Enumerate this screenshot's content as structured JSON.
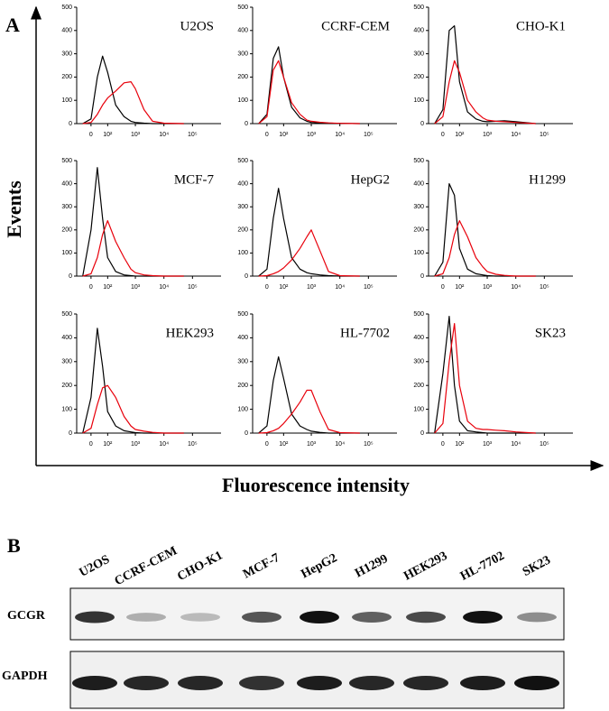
{
  "figure": {
    "panel_a": "A",
    "y_label": "Events",
    "x_label": "Fluorescence intensity",
    "panel_b": "B"
  },
  "blot": {
    "lanes": [
      "U2OS",
      "CCRF-CEM",
      "CHO-K1",
      "MCF-7",
      "HepG2",
      "H1299",
      "HEK293",
      "HL-7702",
      "SK23"
    ],
    "rows": [
      "GCGR",
      "GAPDH"
    ]
  },
  "chart_data": [
    {
      "type": "line",
      "title": "U2OS",
      "x": [
        -40,
        0,
        30,
        60,
        100,
        200,
        400,
        700,
        1000,
        2000,
        4000,
        10000,
        50000
      ],
      "xscale": "biexponential",
      "xlim": [
        -80,
        1000000
      ],
      "ylim": [
        0,
        500
      ],
      "yticks": [
        0,
        100,
        200,
        300,
        400,
        500
      ],
      "xticks": [
        0,
        {
          "value": 100,
          "label": "10²"
        },
        {
          "value": 1000,
          "label": "10³"
        },
        {
          "value": 10000,
          "label": "10⁴"
        },
        {
          "value": 100000,
          "label": "10⁵"
        }
      ],
      "series": [
        {
          "color": "#000000",
          "values": [
            0,
            20,
            200,
            290,
            220,
            80,
            30,
            10,
            5,
            2,
            0,
            0,
            0
          ]
        },
        {
          "color": "#e8000b",
          "values": [
            0,
            5,
            40,
            80,
            110,
            140,
            175,
            180,
            150,
            60,
            10,
            2,
            0
          ]
        }
      ]
    },
    {
      "type": "line",
      "title": "CCRF-CEM",
      "x": [
        -40,
        0,
        30,
        60,
        100,
        200,
        400,
        700,
        1000,
        2000,
        4000,
        10000,
        50000
      ],
      "xscale": "biexponential",
      "xlim": [
        -80,
        1000000
      ],
      "ylim": [
        0,
        500
      ],
      "yticks": [
        0,
        100,
        200,
        300,
        400,
        500
      ],
      "xticks": [
        0,
        {
          "value": 100,
          "label": "10²"
        },
        {
          "value": 1000,
          "label": "10³"
        },
        {
          "value": 10000,
          "label": "10⁴"
        },
        {
          "value": 100000,
          "label": "10⁵"
        }
      ],
      "series": [
        {
          "color": "#000000",
          "values": [
            0,
            40,
            280,
            330,
            200,
            70,
            25,
            10,
            5,
            3,
            2,
            1,
            0
          ]
        },
        {
          "color": "#e8000b",
          "values": [
            0,
            30,
            230,
            270,
            200,
            90,
            40,
            15,
            10,
            6,
            3,
            1,
            0
          ]
        }
      ]
    },
    {
      "type": "line",
      "title": "CHO-K1",
      "x": [
        -40,
        0,
        30,
        60,
        100,
        200,
        400,
        700,
        1000,
        2000,
        4000,
        10000,
        50000
      ],
      "xscale": "biexponential",
      "xlim": [
        -80,
        1000000
      ],
      "ylim": [
        0,
        500
      ],
      "yticks": [
        0,
        100,
        200,
        300,
        400,
        500
      ],
      "xticks": [
        0,
        {
          "value": 100,
          "label": "10²"
        },
        {
          "value": 1000,
          "label": "10³"
        },
        {
          "value": 10000,
          "label": "10⁴"
        },
        {
          "value": 100000,
          "label": "10⁵"
        }
      ],
      "series": [
        {
          "color": "#000000",
          "values": [
            0,
            60,
            400,
            420,
            180,
            50,
            20,
            10,
            8,
            10,
            12,
            8,
            0
          ]
        },
        {
          "color": "#e8000b",
          "values": [
            0,
            30,
            180,
            270,
            220,
            100,
            50,
            25,
            15,
            10,
            8,
            5,
            0
          ]
        }
      ]
    },
    {
      "type": "line",
      "title": "MCF-7",
      "x": [
        -40,
        0,
        30,
        60,
        100,
        200,
        400,
        700,
        1000,
        2000,
        4000,
        10000,
        50000
      ],
      "xscale": "biexponential",
      "xlim": [
        -80,
        1000000
      ],
      "ylim": [
        0,
        500
      ],
      "yticks": [
        0,
        100,
        200,
        300,
        400,
        500
      ],
      "xticks": [
        0,
        {
          "value": 100,
          "label": "10²"
        },
        {
          "value": 1000,
          "label": "10³"
        },
        {
          "value": 10000,
          "label": "10⁴"
        },
        {
          "value": 100000,
          "label": "10⁵"
        }
      ],
      "series": [
        {
          "color": "#000000",
          "values": [
            0,
            200,
            470,
            250,
            80,
            20,
            5,
            2,
            0,
            0,
            0,
            0,
            0
          ]
        },
        {
          "color": "#e8000b",
          "values": [
            0,
            10,
            80,
            180,
            240,
            150,
            80,
            30,
            15,
            5,
            2,
            0,
            0
          ]
        }
      ]
    },
    {
      "type": "line",
      "title": "HepG2",
      "x": [
        -40,
        0,
        30,
        60,
        100,
        200,
        400,
        700,
        1000,
        2000,
        4000,
        10000,
        50000
      ],
      "xscale": "biexponential",
      "xlim": [
        -80,
        1000000
      ],
      "ylim": [
        0,
        500
      ],
      "yticks": [
        0,
        100,
        200,
        300,
        400,
        500
      ],
      "xticks": [
        0,
        {
          "value": 100,
          "label": "10²"
        },
        {
          "value": 1000,
          "label": "10³"
        },
        {
          "value": 10000,
          "label": "10⁴"
        },
        {
          "value": 100000,
          "label": "10⁵"
        }
      ],
      "series": [
        {
          "color": "#000000",
          "values": [
            0,
            30,
            250,
            380,
            250,
            80,
            30,
            15,
            10,
            5,
            2,
            0,
            0
          ]
        },
        {
          "color": "#e8000b",
          "values": [
            0,
            2,
            10,
            20,
            35,
            70,
            120,
            170,
            200,
            110,
            20,
            2,
            0
          ]
        }
      ]
    },
    {
      "type": "line",
      "title": "H1299",
      "x": [
        -40,
        0,
        30,
        60,
        100,
        200,
        400,
        700,
        1000,
        2000,
        4000,
        10000,
        50000
      ],
      "xscale": "biexponential",
      "xlim": [
        -80,
        1000000
      ],
      "ylim": [
        0,
        500
      ],
      "yticks": [
        0,
        100,
        200,
        300,
        400,
        500
      ],
      "xticks": [
        0,
        {
          "value": 100,
          "label": "10²"
        },
        {
          "value": 1000,
          "label": "10³"
        },
        {
          "value": 10000,
          "label": "10⁴"
        },
        {
          "value": 100000,
          "label": "10⁵"
        }
      ],
      "series": [
        {
          "color": "#000000",
          "values": [
            0,
            60,
            400,
            350,
            120,
            30,
            10,
            5,
            2,
            0,
            0,
            0,
            0
          ]
        },
        {
          "color": "#e8000b",
          "values": [
            0,
            10,
            80,
            180,
            240,
            170,
            80,
            40,
            20,
            8,
            3,
            0,
            0
          ]
        }
      ]
    },
    {
      "type": "line",
      "title": "HEK293",
      "x": [
        -40,
        0,
        30,
        60,
        100,
        200,
        400,
        700,
        1000,
        2000,
        4000,
        10000,
        50000
      ],
      "xscale": "biexponential",
      "xlim": [
        -80,
        1000000
      ],
      "ylim": [
        0,
        500
      ],
      "yticks": [
        0,
        100,
        200,
        300,
        400,
        500
      ],
      "xticks": [
        0,
        {
          "value": 100,
          "label": "10²"
        },
        {
          "value": 1000,
          "label": "10³"
        },
        {
          "value": 10000,
          "label": "10⁴"
        },
        {
          "value": 100000,
          "label": "10⁵"
        }
      ],
      "series": [
        {
          "color": "#000000",
          "values": [
            0,
            150,
            440,
            280,
            90,
            30,
            10,
            5,
            2,
            0,
            0,
            0,
            0
          ]
        },
        {
          "color": "#e8000b",
          "values": [
            0,
            20,
            120,
            190,
            200,
            150,
            70,
            30,
            15,
            8,
            3,
            0,
            0
          ]
        }
      ]
    },
    {
      "type": "line",
      "title": "HL-7702",
      "x": [
        -40,
        0,
        30,
        60,
        100,
        200,
        400,
        700,
        1000,
        2000,
        4000,
        10000,
        50000
      ],
      "xscale": "biexponential",
      "xlim": [
        -80,
        1000000
      ],
      "ylim": [
        0,
        500
      ],
      "yticks": [
        0,
        100,
        200,
        300,
        400,
        500
      ],
      "xticks": [
        0,
        {
          "value": 100,
          "label": "10²"
        },
        {
          "value": 1000,
          "label": "10³"
        },
        {
          "value": 10000,
          "label": "10⁴"
        },
        {
          "value": 100000,
          "label": "10⁵"
        }
      ],
      "series": [
        {
          "color": "#000000",
          "values": [
            0,
            30,
            220,
            320,
            230,
            80,
            30,
            15,
            8,
            3,
            0,
            0,
            0
          ]
        },
        {
          "color": "#e8000b",
          "values": [
            0,
            2,
            10,
            20,
            40,
            80,
            130,
            180,
            180,
            90,
            15,
            2,
            0
          ]
        }
      ]
    },
    {
      "type": "line",
      "title": "SK23",
      "x": [
        -40,
        0,
        30,
        60,
        100,
        200,
        400,
        700,
        1000,
        2000,
        4000,
        10000,
        50000
      ],
      "xscale": "biexponential",
      "xlim": [
        -80,
        1000000
      ],
      "ylim": [
        0,
        500
      ],
      "yticks": [
        0,
        100,
        200,
        300,
        400,
        500
      ],
      "xticks": [
        0,
        {
          "value": 100,
          "label": "10²"
        },
        {
          "value": 1000,
          "label": "10³"
        },
        {
          "value": 10000,
          "label": "10⁴"
        },
        {
          "value": 100000,
          "label": "10⁵"
        }
      ],
      "series": [
        {
          "color": "#000000",
          "values": [
            0,
            250,
            490,
            200,
            50,
            10,
            5,
            2,
            0,
            0,
            0,
            0,
            0
          ]
        },
        {
          "color": "#e8000b",
          "values": [
            0,
            40,
            300,
            460,
            200,
            50,
            20,
            15,
            15,
            12,
            10,
            5,
            0
          ]
        }
      ]
    }
  ]
}
